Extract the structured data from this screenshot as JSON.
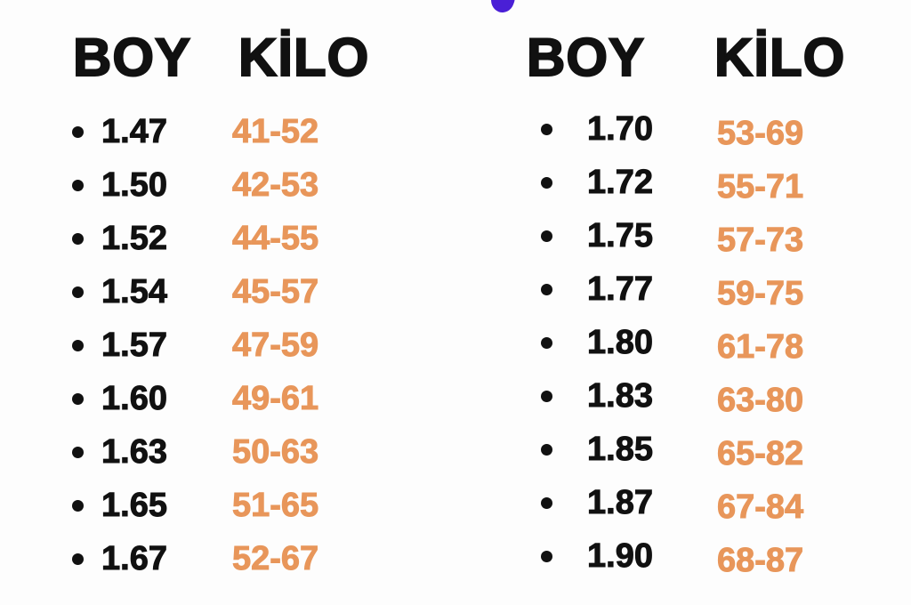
{
  "headers": {
    "boy": "BOY",
    "kilo": "KİLO"
  },
  "colors": {
    "boy_text": "#111111",
    "kilo_text": "#e8965a",
    "accent": "#4a1fd6"
  },
  "left": [
    {
      "boy": "1.47",
      "kilo": "41-52"
    },
    {
      "boy": "1.50",
      "kilo": "42-53"
    },
    {
      "boy": "1.52",
      "kilo": "44-55"
    },
    {
      "boy": "1.54",
      "kilo": "45-57"
    },
    {
      "boy": "1.57",
      "kilo": "47-59"
    },
    {
      "boy": "1.60",
      "kilo": "49-61"
    },
    {
      "boy": "1.63",
      "kilo": "50-63"
    },
    {
      "boy": "1.65",
      "kilo": "51-65"
    },
    {
      "boy": "1.67",
      "kilo": "52-67"
    }
  ],
  "right": [
    {
      "boy": "1.70",
      "kilo": "53-69"
    },
    {
      "boy": "1.72",
      "kilo": "55-71"
    },
    {
      "boy": "1.75",
      "kilo": "57-73"
    },
    {
      "boy": "1.77",
      "kilo": "59-75"
    },
    {
      "boy": "1.80",
      "kilo": "61-78"
    },
    {
      "boy": "1.83",
      "kilo": "63-80"
    },
    {
      "boy": "1.85",
      "kilo": "65-82"
    },
    {
      "boy": "1.87",
      "kilo": "67-84"
    },
    {
      "boy": "1.90",
      "kilo": "68-87"
    }
  ]
}
